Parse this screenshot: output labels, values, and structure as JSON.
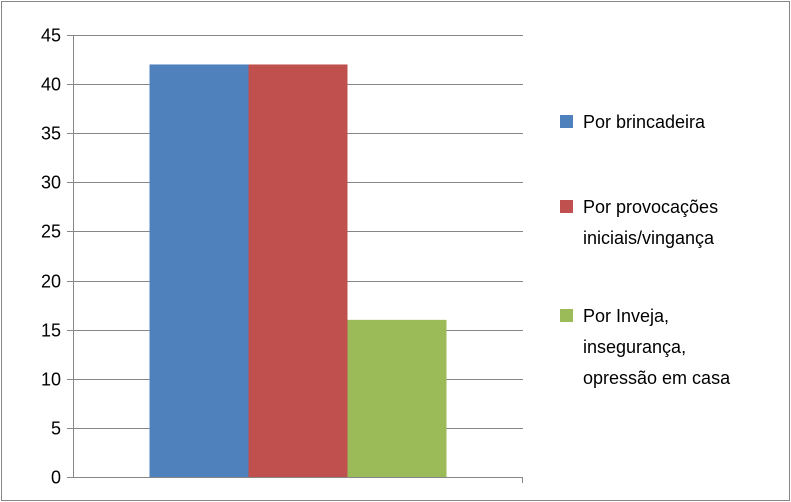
{
  "chart_data": {
    "type": "bar",
    "categories": [
      ""
    ],
    "series": [
      {
        "name": "Por brincadeira",
        "values": [
          42
        ],
        "color": "#4F81BD"
      },
      {
        "name": "Por provocações iniciais/vingança",
        "values": [
          42
        ],
        "color": "#C0504D"
      },
      {
        "name": "Por Inveja, insegurança, opressão em casa",
        "values": [
          16
        ],
        "color": "#9BBB59"
      }
    ],
    "legend_lines": [
      [
        "Por brincadeira"
      ],
      [
        "Por provocações",
        "iniciais/vingança"
      ],
      [
        "Por Inveja,",
        "insegurança,",
        "opressão em casa"
      ]
    ],
    "title": "",
    "xlabel": "",
    "ylabel": "",
    "ylim": [
      0,
      45
    ],
    "yticks": [
      0,
      5,
      10,
      15,
      20,
      25,
      30,
      35,
      40,
      45
    ],
    "grid": true,
    "legend": "right",
    "gridline_color": "#868686"
  }
}
